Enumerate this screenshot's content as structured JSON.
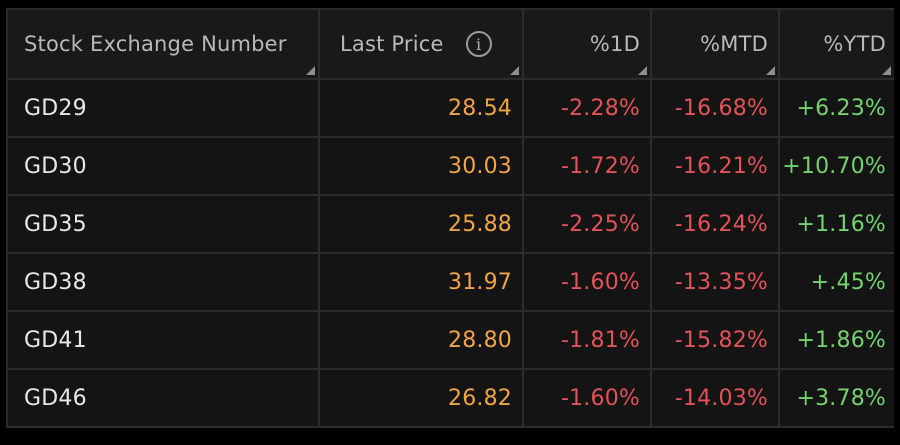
{
  "table": {
    "columns": [
      {
        "label": "Stock Exchange Number"
      },
      {
        "label": "Last Price",
        "info_icon": "info-icon",
        "info_glyph": "i"
      },
      {
        "label": "%1D"
      },
      {
        "label": "%MTD"
      },
      {
        "label": "%YTD"
      }
    ],
    "rows": [
      {
        "symbol": "GD29",
        "last": "28.54",
        "d1": "-2.28%",
        "mtd": "-16.68%",
        "ytd": "+6.23%"
      },
      {
        "symbol": "GD30",
        "last": "30.03",
        "d1": "-1.72%",
        "mtd": "-16.21%",
        "ytd": "+10.70%"
      },
      {
        "symbol": "GD35",
        "last": "25.88",
        "d1": "-2.25%",
        "mtd": "-16.24%",
        "ytd": "+1.16%"
      },
      {
        "symbol": "GD38",
        "last": "31.97",
        "d1": "-1.60%",
        "mtd": "-13.35%",
        "ytd": "+.45%"
      },
      {
        "symbol": "GD41",
        "last": "28.80",
        "d1": "-1.81%",
        "mtd": "-15.82%",
        "ytd": "+1.86%"
      },
      {
        "symbol": "GD46",
        "last": "26.82",
        "d1": "-1.60%",
        "mtd": "-14.03%",
        "ytd": "+3.78%"
      }
    ]
  },
  "colors": {
    "background": "#000000",
    "row_bg": "#141414",
    "header_bg": "#191919",
    "price": "#f0a544",
    "negative": "#e35258",
    "positive": "#72d36f",
    "symbol": "#e8e8e8",
    "header_text": "#b9b9b9"
  }
}
